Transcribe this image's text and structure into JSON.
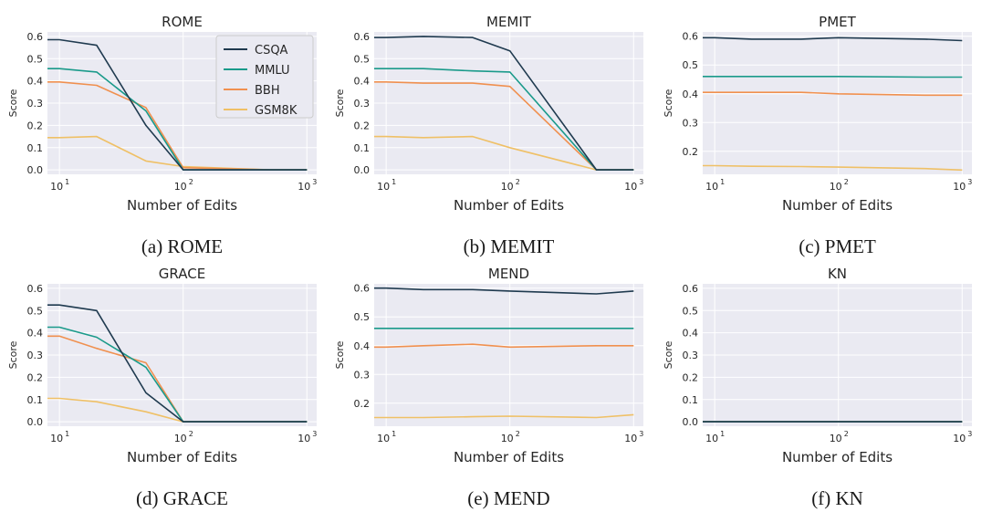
{
  "colors": {
    "CSQA": "#1f3a4f",
    "MMLU": "#1a9a8a",
    "BBH": "#f0904f",
    "GSM8K": "#efc066"
  },
  "legend": [
    "CSQA",
    "MMLU",
    "BBH",
    "GSM8K"
  ],
  "chart_data": [
    {
      "type": "line",
      "title": "ROME",
      "caption": "(a) ROME",
      "xlabel": "Number of Edits",
      "ylabel": "Score",
      "xscale": "log",
      "xlim": [
        8,
        1200
      ],
      "ylim": [
        -0.02,
        0.62
      ],
      "yticks": [
        "0.0",
        "0.1",
        "0.2",
        "0.3",
        "0.4",
        "0.5",
        "0.6"
      ],
      "xticks": [
        {
          "base": "10",
          "exp": "1"
        },
        {
          "base": "10",
          "exp": "2"
        },
        {
          "base": "10",
          "exp": "3"
        }
      ],
      "legend_placement": "upper right",
      "x": [
        8,
        10,
        20,
        50,
        100,
        500,
        1000
      ],
      "series": [
        {
          "name": "CSQA",
          "values": [
            0.585,
            0.585,
            0.56,
            0.2,
            0.0,
            0.0,
            0.0
          ]
        },
        {
          "name": "MMLU",
          "values": [
            0.455,
            0.455,
            0.44,
            0.265,
            0.0,
            0.0,
            0.0
          ]
        },
        {
          "name": "BBH",
          "values": [
            0.395,
            0.395,
            0.38,
            0.28,
            0.01,
            0.0,
            0.0
          ]
        },
        {
          "name": "GSM8K",
          "values": [
            0.145,
            0.145,
            0.15,
            0.04,
            0.015,
            0.0,
            0.0
          ]
        }
      ]
    },
    {
      "type": "line",
      "title": "MEMIT",
      "caption": "(b) MEMIT",
      "xlabel": "Number of Edits",
      "ylabel": "Score",
      "xscale": "log",
      "xlim": [
        8,
        1200
      ],
      "ylim": [
        -0.02,
        0.62
      ],
      "yticks": [
        "0.0",
        "0.1",
        "0.2",
        "0.3",
        "0.4",
        "0.5",
        "0.6"
      ],
      "xticks": [
        {
          "base": "10",
          "exp": "1"
        },
        {
          "base": "10",
          "exp": "2"
        },
        {
          "base": "10",
          "exp": "3"
        }
      ],
      "x": [
        8,
        10,
        20,
        50,
        100,
        500,
        1000
      ],
      "series": [
        {
          "name": "CSQA",
          "values": [
            0.595,
            0.595,
            0.6,
            0.595,
            0.535,
            0.0,
            0.0
          ]
        },
        {
          "name": "MMLU",
          "values": [
            0.455,
            0.455,
            0.455,
            0.445,
            0.44,
            0.0,
            0.0
          ]
        },
        {
          "name": "BBH",
          "values": [
            0.395,
            0.395,
            0.39,
            0.39,
            0.375,
            0.0,
            0.0
          ]
        },
        {
          "name": "GSM8K",
          "values": [
            0.15,
            0.15,
            0.145,
            0.15,
            0.1,
            0.0,
            0.0
          ]
        }
      ]
    },
    {
      "type": "line",
      "title": "PMET",
      "caption": "(c) PMET",
      "xlabel": "Number of Edits",
      "ylabel": "Score",
      "xscale": "log",
      "xlim": [
        8,
        1200
      ],
      "ylim": [
        0.12,
        0.615
      ],
      "yticks": [
        "0.2",
        "0.3",
        "0.4",
        "0.5",
        "0.6"
      ],
      "xticks": [
        {
          "base": "10",
          "exp": "1"
        },
        {
          "base": "10",
          "exp": "2"
        },
        {
          "base": "10",
          "exp": "3"
        }
      ],
      "x": [
        8,
        10,
        20,
        50,
        100,
        500,
        1000
      ],
      "series": [
        {
          "name": "CSQA",
          "values": [
            0.595,
            0.595,
            0.59,
            0.59,
            0.595,
            0.59,
            0.585
          ]
        },
        {
          "name": "MMLU",
          "values": [
            0.46,
            0.46,
            0.46,
            0.46,
            0.46,
            0.458,
            0.458
          ]
        },
        {
          "name": "BBH",
          "values": [
            0.405,
            0.405,
            0.405,
            0.405,
            0.4,
            0.395,
            0.395
          ]
        },
        {
          "name": "GSM8K",
          "values": [
            0.15,
            0.15,
            0.148,
            0.147,
            0.145,
            0.14,
            0.135
          ]
        }
      ]
    },
    {
      "type": "line",
      "title": "GRACE",
      "caption": "(d) GRACE",
      "xlabel": "Number of Edits",
      "ylabel": "Score",
      "xscale": "log",
      "xlim": [
        8,
        1200
      ],
      "ylim": [
        -0.02,
        0.62
      ],
      "yticks": [
        "0.0",
        "0.1",
        "0.2",
        "0.3",
        "0.4",
        "0.5",
        "0.6"
      ],
      "xticks": [
        {
          "base": "10",
          "exp": "1"
        },
        {
          "base": "10",
          "exp": "2"
        },
        {
          "base": "10",
          "exp": "3"
        }
      ],
      "x": [
        8,
        10,
        20,
        50,
        100,
        500,
        1000
      ],
      "series": [
        {
          "name": "CSQA",
          "values": [
            0.525,
            0.525,
            0.5,
            0.13,
            0.0,
            0.0,
            0.0
          ]
        },
        {
          "name": "MMLU",
          "values": [
            0.425,
            0.425,
            0.38,
            0.245,
            0.0,
            0.0,
            0.0
          ]
        },
        {
          "name": "BBH",
          "values": [
            0.385,
            0.385,
            0.33,
            0.265,
            0.0,
            0.0,
            0.0
          ]
        },
        {
          "name": "GSM8K",
          "values": [
            0.105,
            0.105,
            0.09,
            0.045,
            0.0,
            0.0,
            0.0
          ]
        }
      ]
    },
    {
      "type": "line",
      "title": "MEND",
      "caption": "(e) MEND",
      "xlabel": "Number of Edits",
      "ylabel": "Score",
      "xscale": "log",
      "xlim": [
        8,
        1200
      ],
      "ylim": [
        0.12,
        0.615
      ],
      "yticks": [
        "0.2",
        "0.3",
        "0.4",
        "0.5",
        "0.6"
      ],
      "xticks": [
        {
          "base": "10",
          "exp": "1"
        },
        {
          "base": "10",
          "exp": "2"
        },
        {
          "base": "10",
          "exp": "3"
        }
      ],
      "x": [
        8,
        10,
        20,
        50,
        100,
        500,
        1000
      ],
      "series": [
        {
          "name": "CSQA",
          "values": [
            0.6,
            0.6,
            0.595,
            0.595,
            0.59,
            0.58,
            0.59
          ]
        },
        {
          "name": "MMLU",
          "values": [
            0.46,
            0.46,
            0.46,
            0.46,
            0.46,
            0.46,
            0.46
          ]
        },
        {
          "name": "BBH",
          "values": [
            0.395,
            0.395,
            0.4,
            0.405,
            0.395,
            0.4,
            0.4
          ]
        },
        {
          "name": "GSM8K",
          "values": [
            0.15,
            0.15,
            0.15,
            0.153,
            0.155,
            0.15,
            0.16
          ]
        }
      ]
    },
    {
      "type": "line",
      "title": "KN",
      "caption": "(f) KN",
      "xlabel": "Number of Edits",
      "ylabel": "Score",
      "xscale": "log",
      "xlim": [
        8,
        1200
      ],
      "ylim": [
        -0.02,
        0.62
      ],
      "yticks": [
        "0.0",
        "0.1",
        "0.2",
        "0.3",
        "0.4",
        "0.5",
        "0.6"
      ],
      "xticks": [
        {
          "base": "10",
          "exp": "1"
        },
        {
          "base": "10",
          "exp": "2"
        },
        {
          "base": "10",
          "exp": "3"
        }
      ],
      "x": [
        8,
        10,
        20,
        50,
        100,
        500,
        1000
      ],
      "series": [
        {
          "name": "CSQA",
          "values": [
            0.0,
            0.0,
            0.0,
            0.0,
            0.0,
            0.0,
            0.0
          ]
        },
        {
          "name": "MMLU",
          "values": [
            0.0,
            0.0,
            0.0,
            0.0,
            0.0,
            0.0,
            0.0
          ]
        },
        {
          "name": "BBH",
          "values": [
            0.0,
            0.0,
            0.0,
            0.0,
            0.0,
            0.0,
            0.0
          ]
        },
        {
          "name": "GSM8K",
          "values": [
            0.0,
            0.0,
            0.0,
            0.0,
            0.0,
            0.0,
            0.0
          ]
        }
      ]
    }
  ]
}
